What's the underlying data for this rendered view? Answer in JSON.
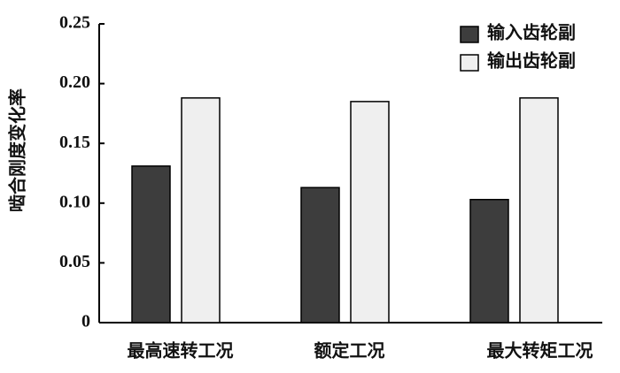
{
  "chart_data": {
    "type": "bar",
    "y_label": "啮合刚度变化率",
    "categories": [
      "最高速转工况",
      "额定工况",
      "最大转矩工况"
    ],
    "series": [
      {
        "name": "输入齿轮副",
        "color": "#3d3d3d",
        "values": [
          0.131,
          0.113,
          0.103
        ]
      },
      {
        "name": "输出齿轮副",
        "color": "#efefef",
        "values": [
          0.188,
          0.185,
          0.188
        ]
      }
    ],
    "ylim": [
      0,
      0.25
    ],
    "yticks": [
      0,
      0.05,
      {
        "value": 0.1,
        "label": "0.10"
      },
      0.15,
      {
        "value": 0.2,
        "label": "0.20"
      },
      0.25
    ],
    "legend": "top-right"
  }
}
